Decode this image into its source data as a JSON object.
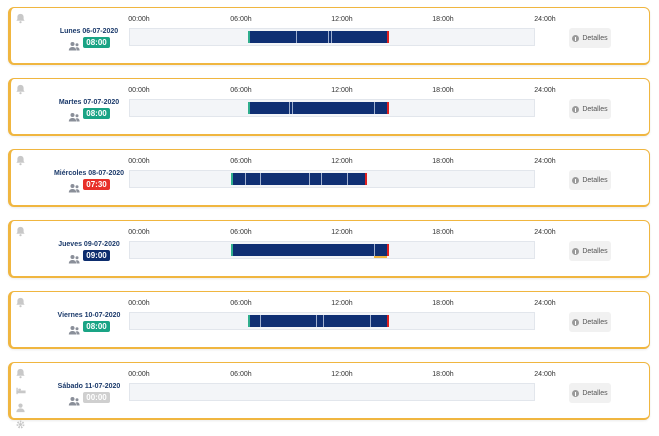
{
  "colors": {
    "accent_border": "#f0b640",
    "bar": "#0f2f73",
    "start_marker": "#2fae8e",
    "end_marker": "#e02020",
    "badge_green": "#1aa485",
    "badge_red": "#e8302a",
    "badge_navy": "#0d2d6e",
    "badge_gray": "#cfcfcf"
  },
  "axis": {
    "ticks": [
      "00:00h",
      "06:00h",
      "12:00h",
      "18:00h",
      "24:00h"
    ]
  },
  "details_label": "Detalles",
  "days": [
    {
      "label": "Lunes 06-07-2020",
      "hours": "08:00",
      "badge_color": "#1aa485",
      "side_icons": [
        "bell-icon"
      ],
      "start_h": 7.1,
      "end_h": 15.2,
      "separators_h": [
        9.8,
        11.7,
        11.9
      ],
      "under_marker": null
    },
    {
      "label": "Martes 07-07-2020",
      "hours": "08:00",
      "badge_color": "#1aa485",
      "side_icons": [
        "bell-icon"
      ],
      "start_h": 7.1,
      "end_h": 15.2,
      "separators_h": [
        9.4,
        9.6,
        14.4
      ],
      "under_marker": null
    },
    {
      "label": "Miércoles 08-07-2020",
      "hours": "07:30",
      "badge_color": "#e8302a",
      "side_icons": [
        "bell-icon"
      ],
      "start_h": 6.1,
      "end_h": 13.9,
      "separators_h": [
        6.8,
        7.7,
        10.6,
        11.3,
        12.8
      ],
      "under_marker": null
    },
    {
      "label": "Jueves 09-07-2020",
      "hours": "09:00",
      "badge_color": "#0d2d6e",
      "side_icons": [
        "bell-icon"
      ],
      "start_h": 6.1,
      "end_h": 15.2,
      "separators_h": [
        14.4
      ],
      "under_marker": {
        "start_h": 14.4,
        "end_h": 15.2
      }
    },
    {
      "label": "Viernes 10-07-2020",
      "hours": "08:00",
      "badge_color": "#1aa485",
      "side_icons": [
        "bell-icon"
      ],
      "start_h": 7.1,
      "end_h": 15.2,
      "separators_h": [
        7.7,
        11.0,
        11.4,
        14.2
      ],
      "under_marker": null
    },
    {
      "label": "Sábado 11-07-2020",
      "hours": "00:00",
      "badge_color": "#cfcfcf",
      "side_icons": [
        "bell-icon",
        "bed-icon",
        "user-icon",
        "gear-icon"
      ],
      "start_h": null,
      "end_h": null,
      "separators_h": [],
      "under_marker": null
    }
  ]
}
